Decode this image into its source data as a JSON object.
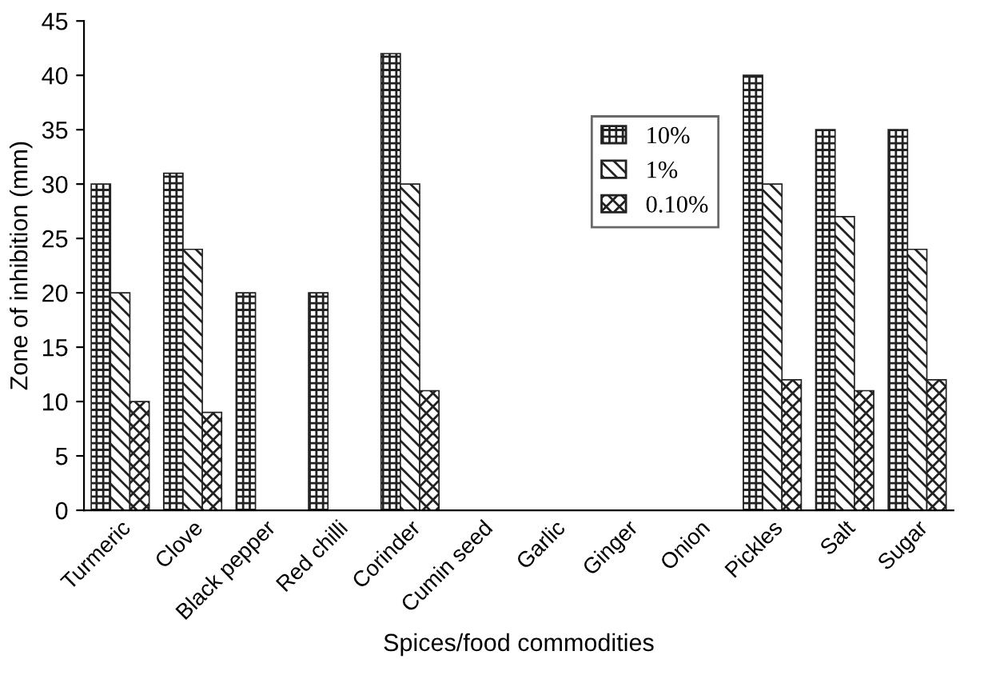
{
  "chart_data": {
    "type": "bar",
    "xlabel": "Spices/food commodities",
    "ylabel": "Zone of inhibition (mm)",
    "categories": [
      "Turmeric",
      "Clove",
      "Black pepper",
      "Red chilli",
      "Corinder",
      "Cumin seed",
      "Garlic",
      "Ginger",
      "Onion",
      "Pickles",
      "Salt",
      "Sugar"
    ],
    "series": [
      {
        "name": "10%",
        "color": "#222222",
        "values": [
          30,
          31,
          20,
          20,
          42,
          0,
          0,
          0,
          0,
          40,
          35,
          35
        ]
      },
      {
        "name": "1%",
        "color": "#222222",
        "values": [
          20,
          24,
          0,
          0,
          30,
          0,
          0,
          0,
          0,
          30,
          27,
          24
        ]
      },
      {
        "name": "0.10%",
        "color": "#222222",
        "values": [
          10,
          9,
          0,
          0,
          11,
          0,
          0,
          0,
          0,
          12,
          11,
          12
        ]
      }
    ],
    "ylim": [
      0,
      45
    ],
    "yticks": [
      0,
      5,
      10,
      15,
      20,
      25,
      30,
      35,
      40,
      45
    ],
    "grid": false,
    "legend": "top"
  }
}
